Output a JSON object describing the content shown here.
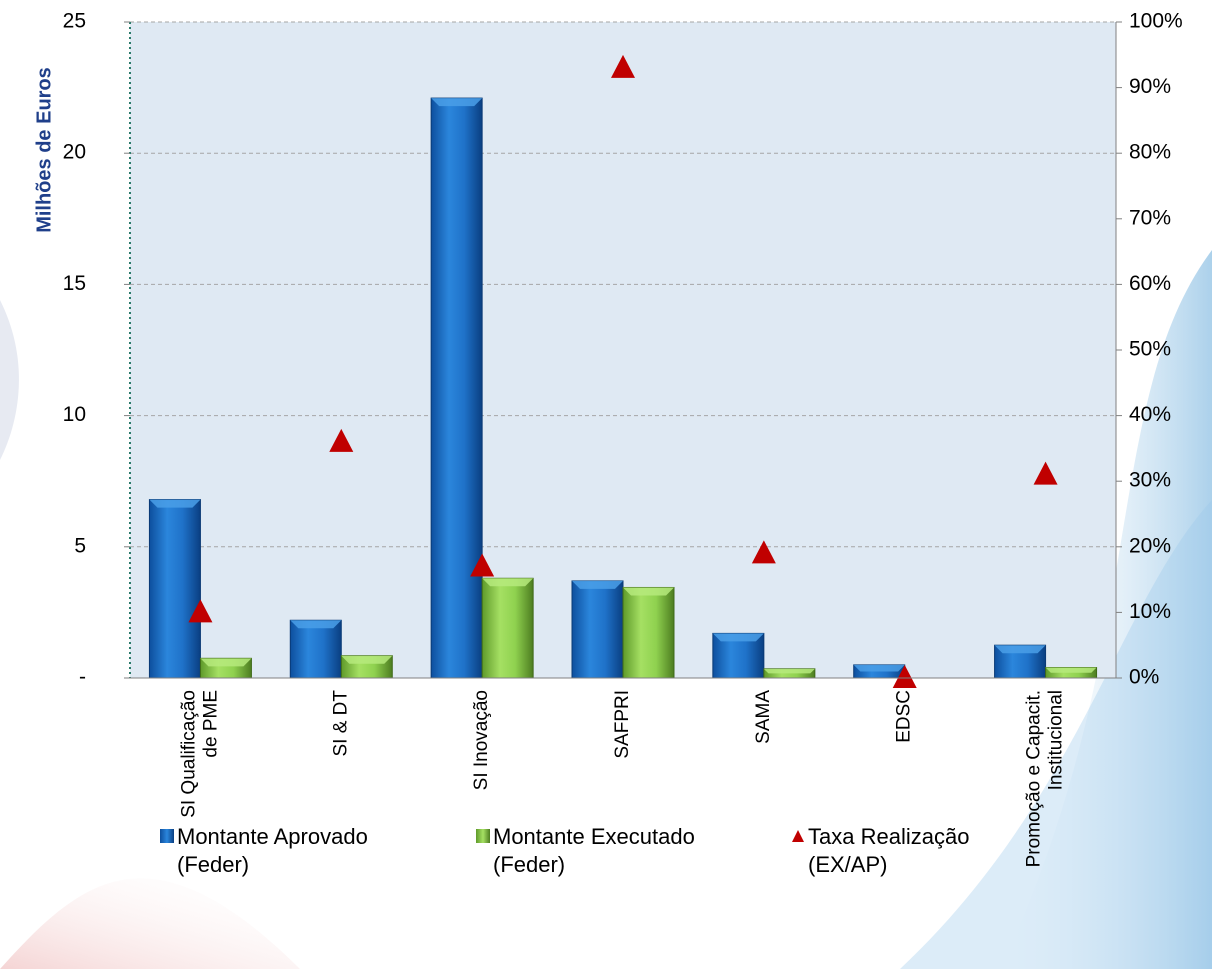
{
  "chart_data": {
    "type": "bar",
    "ylabel": "Milhões de Euros",
    "categories": [
      "SI Qualificação de PME",
      "SI & DT",
      "SI Inovação",
      "SAFPRI",
      "SAMA",
      "EDSC",
      "Promoção e Capacit. Institucional"
    ],
    "category_lines": [
      [
        "SI Qualificação",
        "de PME"
      ],
      [
        "SI & DT"
      ],
      [
        "SI Inovação"
      ],
      [
        "SAFPRI"
      ],
      [
        "SAMA"
      ],
      [
        "EDSC"
      ],
      [
        "Promoção e Capacit.",
        "Institucional"
      ]
    ],
    "series": [
      {
        "name": "Montante Aprovado (Feder)",
        "legend_lines": [
          "Montante Aprovado",
          "(Feder)"
        ],
        "axis": "left",
        "type": "bar",
        "color": "#1f6fc6",
        "values": [
          6.8,
          2.2,
          22.1,
          3.7,
          1.7,
          0.5,
          1.25
        ]
      },
      {
        "name": "Montante Executado (Feder)",
        "legend_lines": [
          "Montante Executado",
          "(Feder)"
        ],
        "axis": "left",
        "type": "bar",
        "color": "#8fd14f",
        "values": [
          0.75,
          0.85,
          3.8,
          3.45,
          0.35,
          0.0,
          0.4
        ]
      },
      {
        "name": "Taxa Realização (EX/AP)",
        "legend_lines": [
          "Taxa Realização",
          "(EX/AP)"
        ],
        "axis": "right",
        "type": "scatter",
        "marker": "triangle",
        "color": "#c00000",
        "values": [
          10,
          36,
          17,
          93,
          19,
          0,
          31
        ]
      }
    ],
    "y_left": {
      "min": 0,
      "max": 25,
      "ticks": [
        0,
        5,
        10,
        15,
        20,
        25
      ],
      "tick_labels": [
        "-",
        "5",
        "10",
        "15",
        "20",
        "25"
      ]
    },
    "y_right": {
      "min": 0,
      "max": 100,
      "ticks": [
        0,
        10,
        20,
        30,
        40,
        50,
        60,
        70,
        80,
        90,
        100
      ],
      "tick_labels": [
        "0%",
        "10%",
        "20%",
        "30%",
        "40%",
        "50%",
        "60%",
        "70%",
        "80%",
        "90%",
        "100%"
      ]
    },
    "grid": true,
    "legend_position": "bottom"
  },
  "colors": {
    "plot_background": "#dfe9f3",
    "gridline": "#a6a6a6"
  }
}
